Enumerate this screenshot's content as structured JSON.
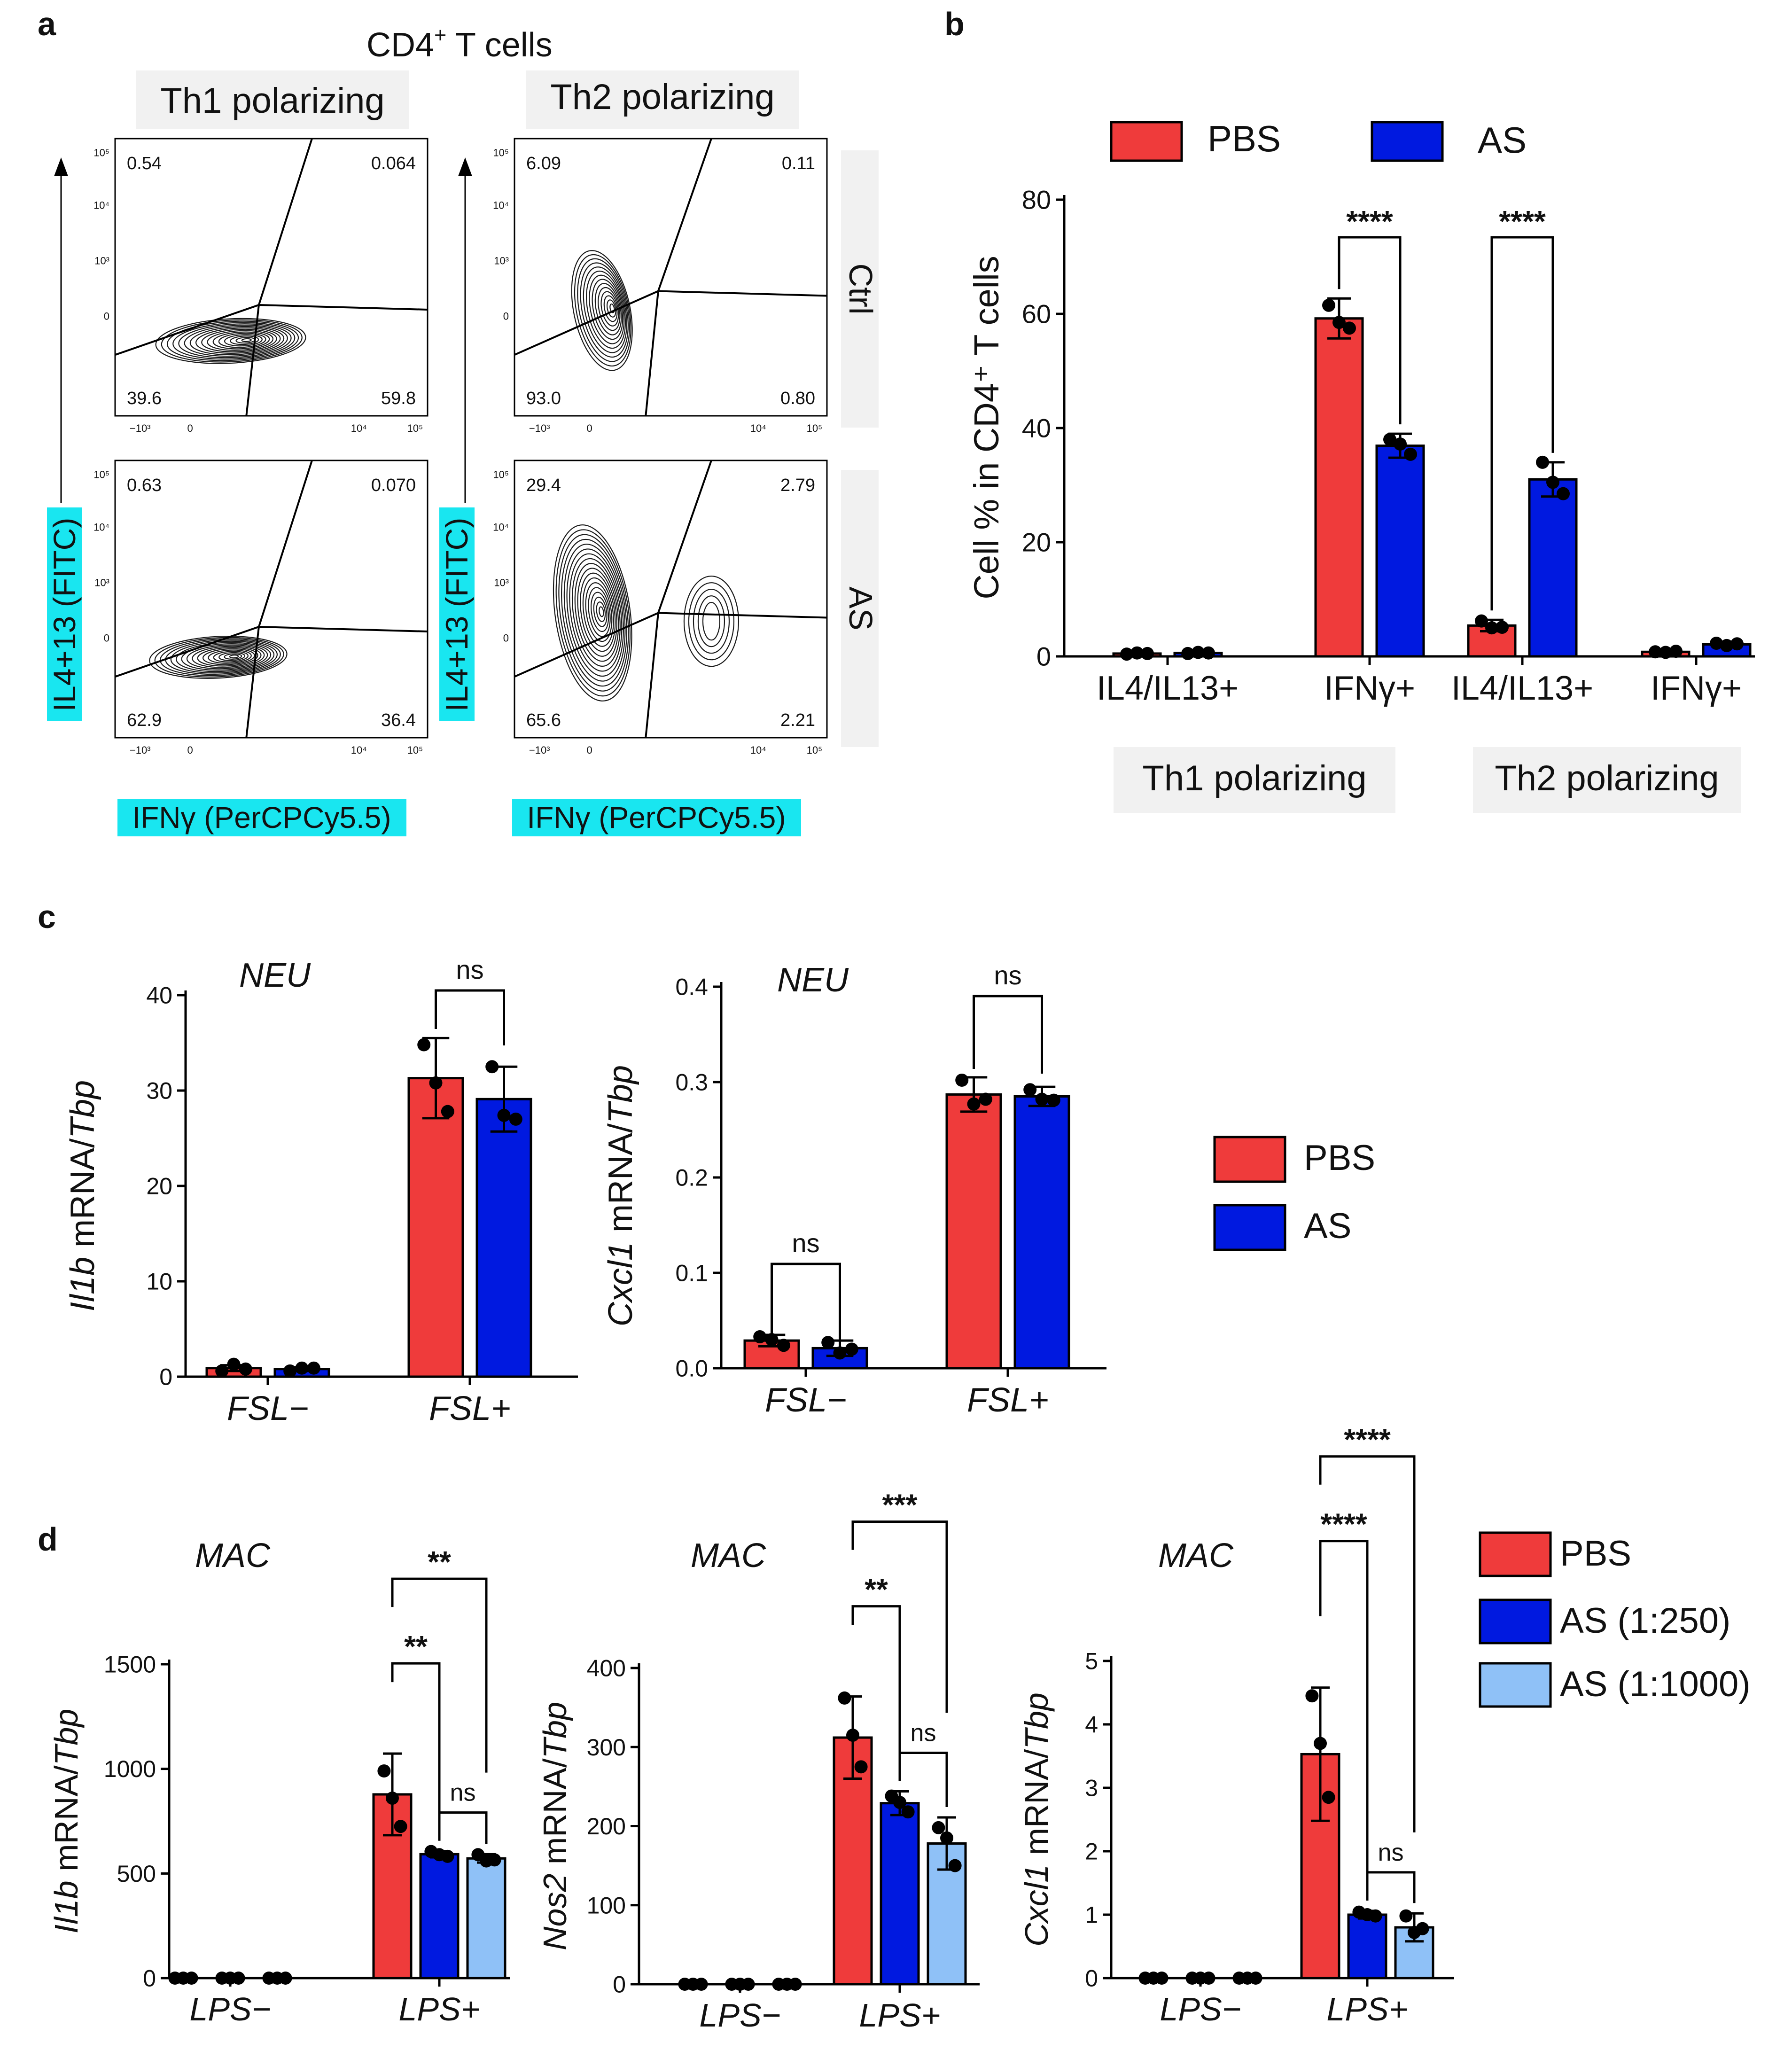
{
  "figure": {
    "colors": {
      "pbs": "#ef3b3b",
      "as": "#0019e0",
      "as_light": "#8fc1f7",
      "cyan_label": "#19e6f0",
      "grey_box": "#f1f1f1"
    },
    "panel_a": {
      "letter": "a",
      "title": "CD4",
      "title_sup": "+",
      "title_rest": " T cells",
      "column_labels": [
        "Th1 polarizing",
        "Th2 polarizing"
      ],
      "row_labels": [
        "Ctrl",
        "AS"
      ],
      "y_axis_label": "IL4+13 (FITC)",
      "x_axis_label": "IFNγ (PerCPCy5.5)",
      "y_ticks": [
        "10⁵",
        "10⁴",
        "10³",
        "0"
      ],
      "x_ticks": [
        "−10³",
        "0",
        "10⁴",
        "10⁵"
      ],
      "plots": [
        {
          "name": "Th1 Ctrl",
          "ul": "0.54",
          "ur": "0.064",
          "ll": "39.6",
          "lr": "59.8"
        },
        {
          "name": "Th2 Ctrl",
          "ul": "6.09",
          "ur": "0.11",
          "ll": "93.0",
          "lr": "0.80"
        },
        {
          "name": "Th1 AS",
          "ul": "0.63",
          "ur": "0.070",
          "ll": "62.9",
          "lr": "36.4"
        },
        {
          "name": "Th2 AS",
          "ul": "29.4",
          "ur": "2.79",
          "ll": "65.6",
          "lr": "2.21"
        }
      ]
    },
    "panel_b": {
      "letter": "b"
    },
    "panel_c": {
      "letter": "c",
      "legend": [
        "PBS",
        "AS"
      ]
    },
    "panel_d": {
      "letter": "d",
      "legend": [
        "PBS",
        "AS (1:250)",
        "AS (1:1000)"
      ]
    }
  },
  "chart_data": [
    {
      "id": "b",
      "type": "bar",
      "title": "",
      "xlabel": "",
      "ylabel": "Cell % in CD4⁺ T cells",
      "ylim": [
        0,
        80
      ],
      "yticks": [
        0,
        20,
        40,
        60,
        80
      ],
      "categories": [
        "IL4/IL13+",
        "IFNγ+",
        "IL4/IL13+",
        "IFNγ+"
      ],
      "groups": [
        "Th1 polarizing",
        "Th2 polarizing"
      ],
      "series": [
        {
          "name": "PBS",
          "values": [
            0.5,
            59.2,
            5.4,
            0.8
          ],
          "err": [
            0.2,
            3.5,
            1.0,
            0.2
          ],
          "points": [
            [
              0.4,
              0.6,
              0.5
            ],
            [
              61.5,
              58.5,
              57.5
            ],
            [
              6.2,
              5.0,
              5.1
            ],
            [
              0.8,
              0.7,
              0.9
            ]
          ]
        },
        {
          "name": "AS",
          "values": [
            0.6,
            36.9,
            31.0,
            2.1
          ],
          "err": [
            0.2,
            2.1,
            3.0,
            0.4
          ],
          "points": [
            [
              0.5,
              0.7,
              0.6
            ],
            [
              38.0,
              37.2,
              35.4
            ],
            [
              34.0,
              30.5,
              28.5
            ],
            [
              2.3,
              1.9,
              2.2
            ]
          ]
        }
      ],
      "legend": [
        "PBS",
        "AS"
      ],
      "significance": [
        {
          "category": 1,
          "label": "****"
        },
        {
          "category": 2,
          "label": "****"
        }
      ]
    },
    {
      "id": "c1",
      "type": "bar",
      "title": "NEU",
      "ylabel_italic": "Il1b",
      "ylabel_plain": " mRNA/",
      "ylabel_italic2": "Tbp",
      "ylim": [
        0,
        40
      ],
      "yticks": [
        "0",
        "10",
        "20",
        "30",
        "40"
      ],
      "ytick_values": [
        0,
        10,
        20,
        30,
        40
      ],
      "categories": [
        "FSL−",
        "FSL+"
      ],
      "series": [
        {
          "name": "PBS",
          "values": [
            0.9,
            31.3
          ],
          "err": [
            0.3,
            4.2
          ],
          "points": [
            [
              0.6,
              1.3,
              0.8
            ],
            [
              34.8,
              30.8,
              27.8
            ]
          ]
        },
        {
          "name": "AS",
          "values": [
            0.8,
            29.1
          ],
          "err": [
            0.2,
            3.4
          ],
          "points": [
            [
              0.6,
              0.9,
              0.9
            ],
            [
              32.5,
              27.4,
              27.0
            ]
          ]
        }
      ],
      "significance": [
        {
          "category": 1,
          "label": "ns"
        }
      ]
    },
    {
      "id": "c2",
      "type": "bar",
      "title": "NEU",
      "ylabel_italic": "Cxcl1",
      "ylabel_plain": " mRNA/",
      "ylabel_italic2": "Tbp",
      "ylim": [
        0,
        0.4
      ],
      "yticks": [
        "0.0",
        "0.1",
        "0.2",
        "0.3",
        "0.4"
      ],
      "ytick_values": [
        0,
        0.1,
        0.2,
        0.3,
        0.4
      ],
      "categories": [
        "FSL−",
        "FSL+"
      ],
      "series": [
        {
          "name": "PBS",
          "values": [
            0.029,
            0.287
          ],
          "err": [
            0.006,
            0.018
          ],
          "points": [
            [
              0.033,
              0.03,
              0.024
            ],
            [
              0.302,
              0.277,
              0.282
            ]
          ]
        },
        {
          "name": "AS",
          "values": [
            0.021,
            0.285
          ],
          "err": [
            0.008,
            0.01
          ],
          "points": [
            [
              0.027,
              0.016,
              0.02
            ],
            [
              0.292,
              0.282,
              0.281
            ]
          ]
        }
      ],
      "significance": [
        {
          "category": 0,
          "label": "ns"
        },
        {
          "category": 1,
          "label": "ns"
        }
      ]
    },
    {
      "id": "d1",
      "type": "bar",
      "title": "MAC",
      "ylabel_italic": "Il1b",
      "ylabel_plain": " mRNA/",
      "ylabel_italic2": "Tbp",
      "ylim": [
        0,
        1500
      ],
      "yticks": [
        "0",
        "500",
        "1000",
        "1500"
      ],
      "ytick_values": [
        0,
        500,
        1000,
        1500
      ],
      "categories": [
        "LPS−",
        "LPS+"
      ],
      "series": [
        {
          "name": "PBS",
          "values": [
            0,
            878
          ],
          "err": [
            0,
            195
          ],
          "points": [
            [
              0,
              0,
              0
            ],
            [
              990,
              860,
              725
            ]
          ]
        },
        {
          "name": "AS (1:250)",
          "values": [
            0,
            592
          ],
          "err": [
            0,
            15
          ],
          "points": [
            [
              0,
              0,
              0
            ],
            [
              605,
              590,
              582
            ]
          ]
        },
        {
          "name": "AS (1:1000)",
          "values": [
            0,
            572
          ],
          "err": [
            0,
            20
          ],
          "points": [
            [
              0,
              0,
              0
            ],
            [
              590,
              560,
              565
            ]
          ]
        }
      ],
      "significance": [
        {
          "pair": [
            0,
            1
          ],
          "label": "**"
        },
        {
          "pair": [
            1,
            2
          ],
          "label": "ns"
        },
        {
          "pair": [
            0,
            2
          ],
          "label": "**"
        }
      ]
    },
    {
      "id": "d2",
      "type": "bar",
      "title": "MAC",
      "ylabel_italic": "Nos2",
      "ylabel_plain": " mRNA/",
      "ylabel_italic2": "Tbp",
      "ylim": [
        0,
        400
      ],
      "yticks": [
        "0",
        "100",
        "200",
        "300",
        "400"
      ],
      "ytick_values": [
        0,
        100,
        200,
        300,
        400
      ],
      "categories": [
        "LPS−",
        "LPS+"
      ],
      "series": [
        {
          "name": "PBS",
          "values": [
            0,
            312
          ],
          "err": [
            0,
            52
          ],
          "points": [
            [
              0,
              0,
              0
            ],
            [
              362,
              315,
              275
            ]
          ]
        },
        {
          "name": "AS (1:250)",
          "values": [
            0,
            229
          ],
          "err": [
            0,
            15
          ],
          "points": [
            [
              0,
              0,
              0
            ],
            [
              238,
              230,
              218
            ]
          ]
        },
        {
          "name": "AS (1:1000)",
          "values": [
            0,
            178
          ],
          "err": [
            0,
            33
          ],
          "points": [
            [
              0,
              0,
              0
            ],
            [
              198,
              185,
              150
            ]
          ]
        }
      ],
      "significance": [
        {
          "pair": [
            0,
            1
          ],
          "label": "**"
        },
        {
          "pair": [
            1,
            2
          ],
          "label": "ns"
        },
        {
          "pair": [
            0,
            2
          ],
          "label": "***"
        }
      ]
    },
    {
      "id": "d3",
      "type": "bar",
      "title": "MAC",
      "ylabel_italic": "Cxcl1",
      "ylabel_plain": " mRNA/",
      "ylabel_italic2": "Tbp",
      "ylim": [
        0,
        5
      ],
      "yticks": [
        "0",
        "1",
        "2",
        "3",
        "4",
        "5"
      ],
      "ytick_values": [
        0,
        1,
        2,
        3,
        4,
        5
      ],
      "categories": [
        "LPS−",
        "LPS+"
      ],
      "series": [
        {
          "name": "PBS",
          "values": [
            0,
            3.53
          ],
          "err": [
            0,
            1.05
          ],
          "points": [
            [
              0,
              0,
              0
            ],
            [
              4.45,
              3.7,
              2.85
            ]
          ]
        },
        {
          "name": "AS (1:250)",
          "values": [
            0,
            1.0
          ],
          "err": [
            0,
            0.06
          ],
          "points": [
            [
              0,
              0,
              0
            ],
            [
              1.04,
              1.0,
              0.98
            ]
          ]
        },
        {
          "name": "AS (1:1000)",
          "values": [
            0,
            0.8
          ],
          "err": [
            0,
            0.22
          ],
          "points": [
            [
              0,
              0,
              0
            ],
            [
              0.98,
              0.72,
              0.78
            ]
          ]
        }
      ],
      "significance": [
        {
          "pair": [
            0,
            1
          ],
          "label": "****"
        },
        {
          "pair": [
            1,
            2
          ],
          "label": "ns"
        },
        {
          "pair": [
            0,
            2
          ],
          "label": "****"
        }
      ]
    }
  ]
}
